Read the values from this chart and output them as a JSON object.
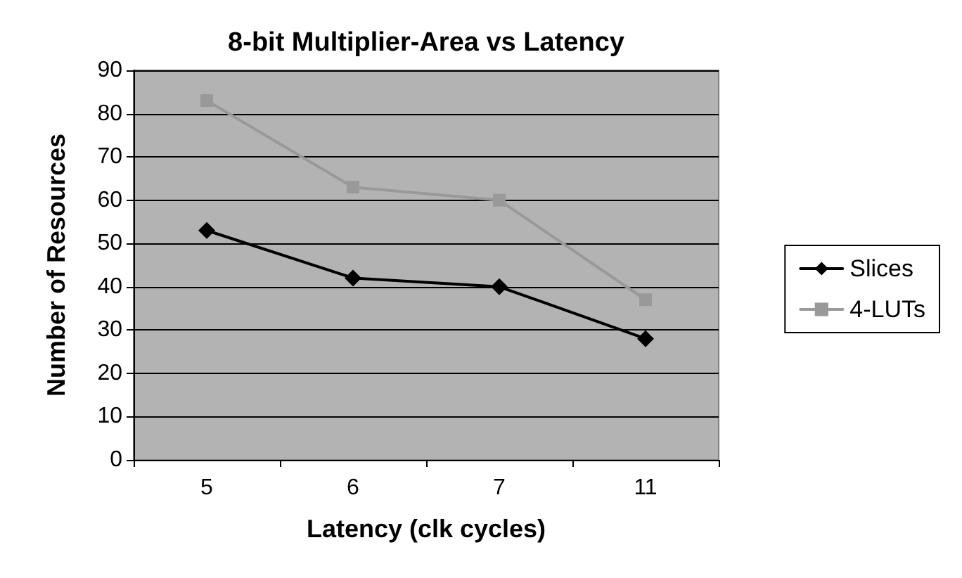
{
  "chart_data": {
    "type": "line",
    "title": "8-bit Multiplier-Area vs Latency",
    "xlabel": "Latency (clk cycles)",
    "ylabel": "Number of Resources",
    "categories": [
      "5",
      "6",
      "7",
      "11"
    ],
    "series": [
      {
        "name": "Slices",
        "color": "#000000",
        "marker": "diamond",
        "values": [
          53,
          42,
          40,
          28
        ]
      },
      {
        "name": "4-LUTs",
        "color": "#999999",
        "marker": "square",
        "values": [
          83,
          63,
          60,
          37
        ]
      }
    ],
    "ylim": [
      0,
      90
    ],
    "yticks": [
      0,
      10,
      20,
      30,
      40,
      50,
      60,
      70,
      80,
      90
    ],
    "grid": "y",
    "legend": "right"
  }
}
